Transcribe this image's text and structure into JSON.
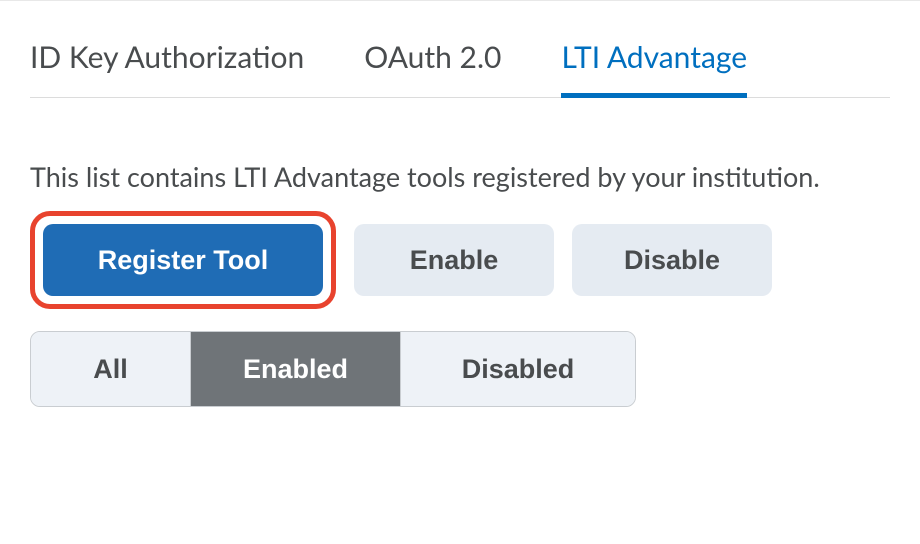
{
  "tabs": {
    "items": [
      {
        "label": "ID Key Authorization",
        "active": false
      },
      {
        "label": "OAuth 2.0",
        "active": false
      },
      {
        "label": "LTI Advantage",
        "active": true
      }
    ]
  },
  "description": "This list contains LTI Advantage tools registered by your institution.",
  "actions": {
    "register": "Register Tool",
    "enable": "Enable",
    "disable": "Disable"
  },
  "filters": {
    "all": "All",
    "enabled": "Enabled",
    "disabled": "Disabled",
    "active": "enabled"
  },
  "colors": {
    "primary": "#1f6cb5",
    "tab_active": "#006fbf",
    "highlight_border": "#e8432e",
    "secondary_bg": "#e5ebf2",
    "filter_bg": "#eef2f7",
    "filter_active_bg": "#6f7478",
    "text": "#494c4e",
    "border": "#c9cdd1"
  }
}
